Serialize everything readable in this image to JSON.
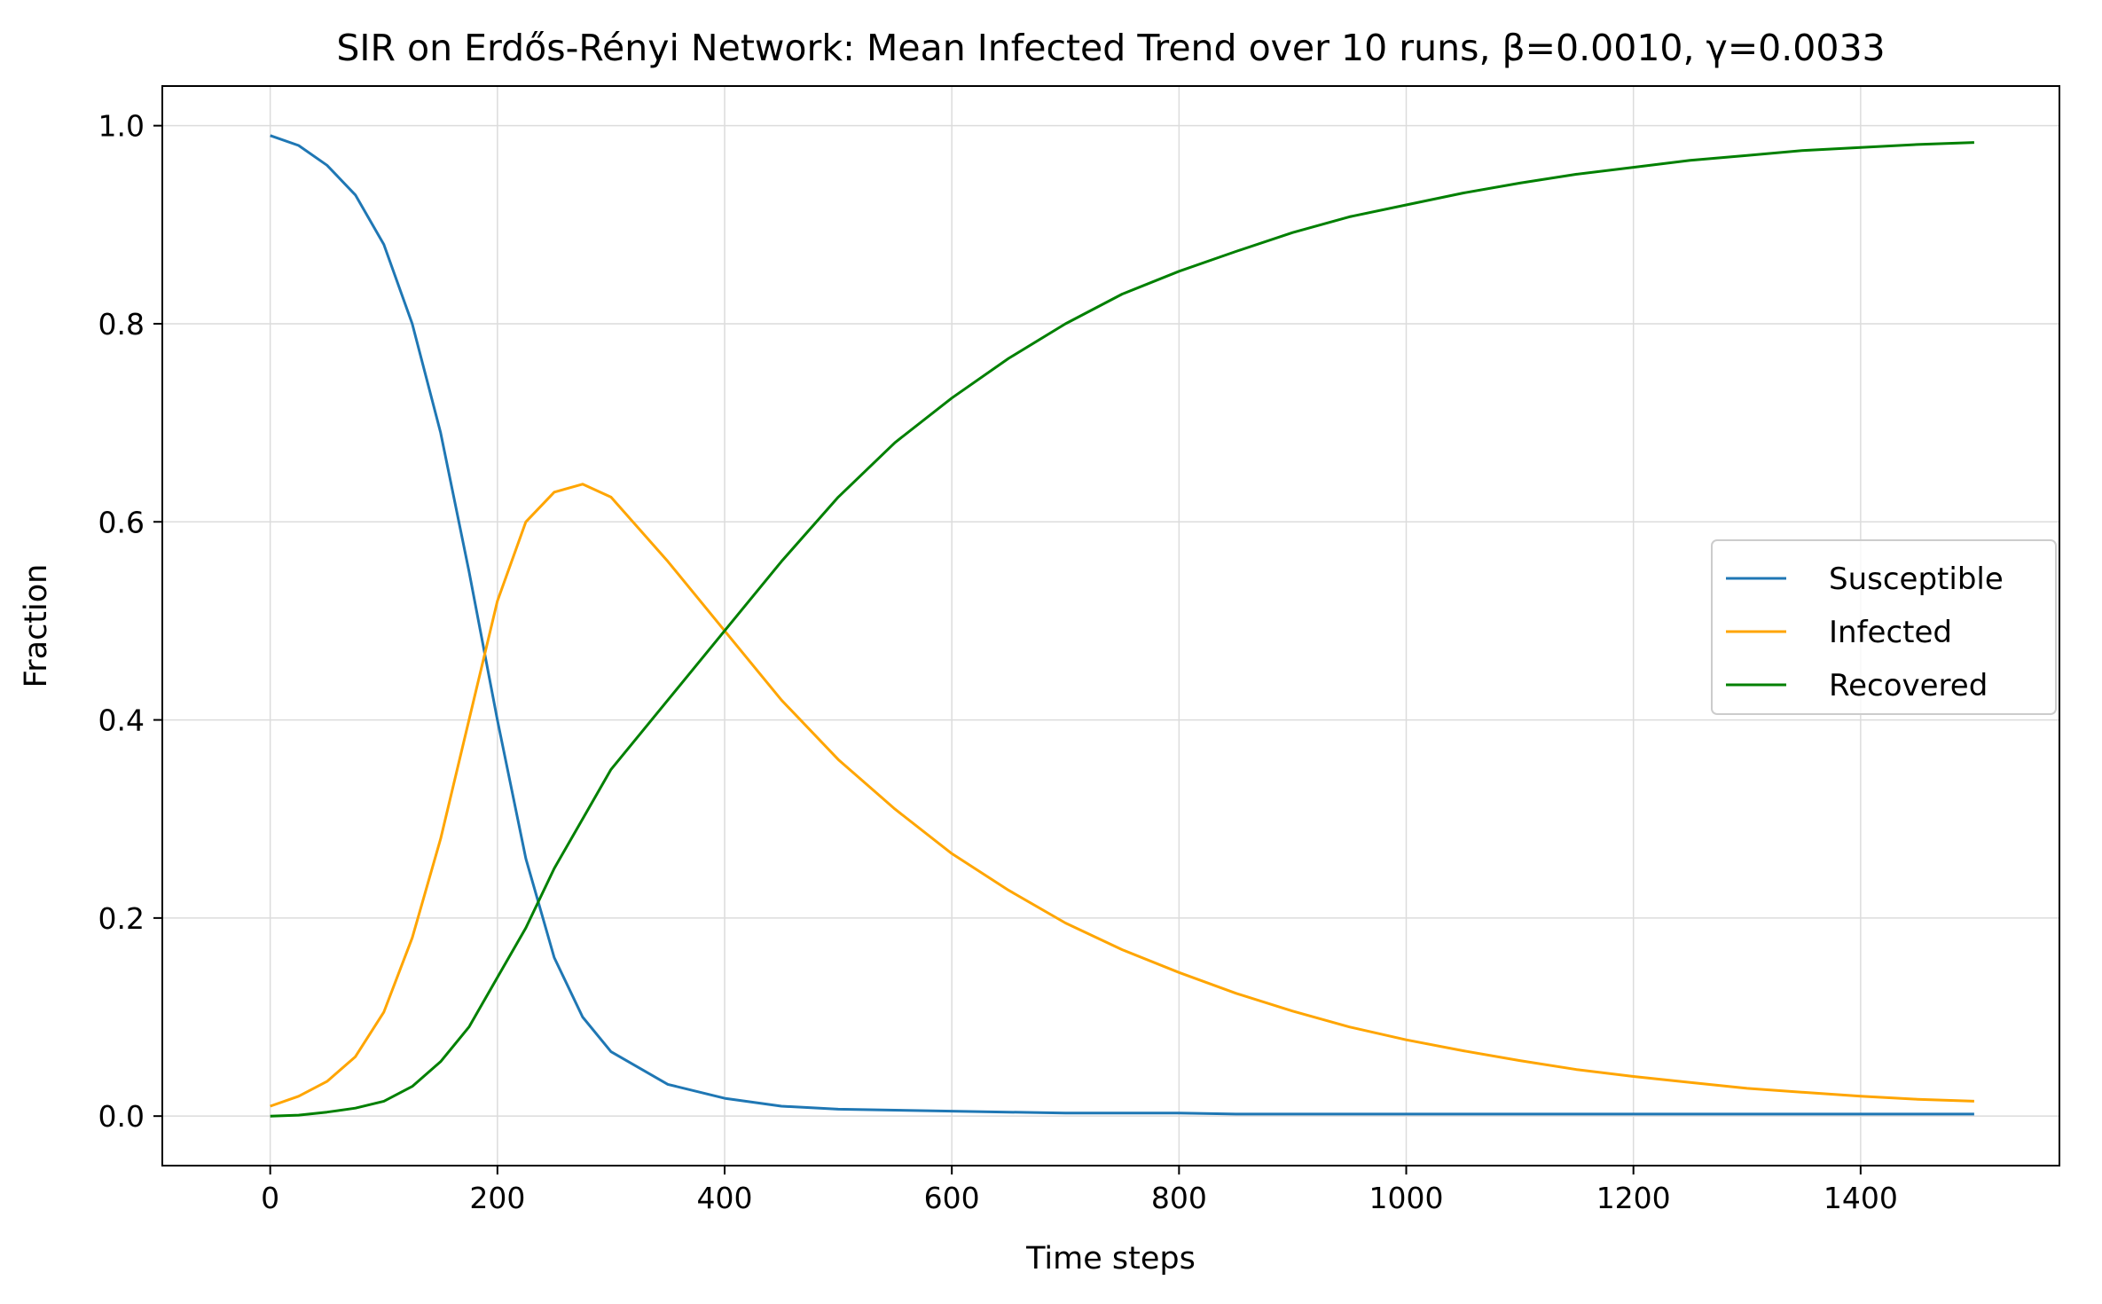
{
  "chart_data": {
    "type": "line",
    "title": "SIR on Erdős-Rényi Network: Mean Infected Trend over 10 runs, β=0.0010, γ=0.0033",
    "xlabel": "Time steps",
    "ylabel": "Fraction",
    "xlim": [
      -95,
      1575
    ],
    "ylim": [
      -0.05,
      1.04
    ],
    "xticks": [
      0,
      200,
      400,
      600,
      800,
      1000,
      1200,
      1400
    ],
    "yticks": [
      0.0,
      0.2,
      0.4,
      0.6,
      0.8,
      1.0
    ],
    "xtick_labels": [
      "0",
      "200",
      "400",
      "600",
      "800",
      "1000",
      "1200",
      "1400"
    ],
    "ytick_labels": [
      "0.0",
      "0.2",
      "0.4",
      "0.6",
      "0.8",
      "1.0"
    ],
    "grid": true,
    "legend_position": "center-right",
    "x": [
      0,
      25,
      50,
      75,
      100,
      125,
      150,
      175,
      200,
      225,
      250,
      275,
      300,
      350,
      400,
      450,
      500,
      550,
      600,
      650,
      700,
      750,
      800,
      850,
      900,
      950,
      1000,
      1050,
      1100,
      1150,
      1200,
      1250,
      1300,
      1350,
      1400,
      1450,
      1500
    ],
    "series": [
      {
        "name": "Susceptible",
        "color": "#1f77b4",
        "values": [
          0.99,
          0.98,
          0.96,
          0.93,
          0.88,
          0.8,
          0.69,
          0.55,
          0.4,
          0.26,
          0.16,
          0.1,
          0.065,
          0.032,
          0.018,
          0.01,
          0.007,
          0.006,
          0.005,
          0.004,
          0.003,
          0.003,
          0.003,
          0.002,
          0.002,
          0.002,
          0.002,
          0.002,
          0.002,
          0.002,
          0.002,
          0.002,
          0.002,
          0.002,
          0.002,
          0.002,
          0.002
        ]
      },
      {
        "name": "Infected",
        "color": "#ffa500",
        "values": [
          0.01,
          0.02,
          0.035,
          0.06,
          0.105,
          0.18,
          0.28,
          0.4,
          0.52,
          0.6,
          0.63,
          0.638,
          0.625,
          0.56,
          0.49,
          0.42,
          0.36,
          0.31,
          0.265,
          0.228,
          0.195,
          0.168,
          0.145,
          0.124,
          0.106,
          0.09,
          0.077,
          0.066,
          0.056,
          0.047,
          0.04,
          0.034,
          0.028,
          0.024,
          0.02,
          0.017,
          0.015
        ]
      },
      {
        "name": "Recovered",
        "color": "#008000",
        "values": [
          0.0,
          0.001,
          0.004,
          0.008,
          0.015,
          0.03,
          0.055,
          0.09,
          0.14,
          0.19,
          0.25,
          0.3,
          0.35,
          0.42,
          0.49,
          0.56,
          0.625,
          0.68,
          0.725,
          0.765,
          0.8,
          0.83,
          0.853,
          0.873,
          0.892,
          0.908,
          0.92,
          0.932,
          0.942,
          0.951,
          0.958,
          0.965,
          0.97,
          0.975,
          0.978,
          0.981,
          0.983
        ]
      }
    ]
  }
}
